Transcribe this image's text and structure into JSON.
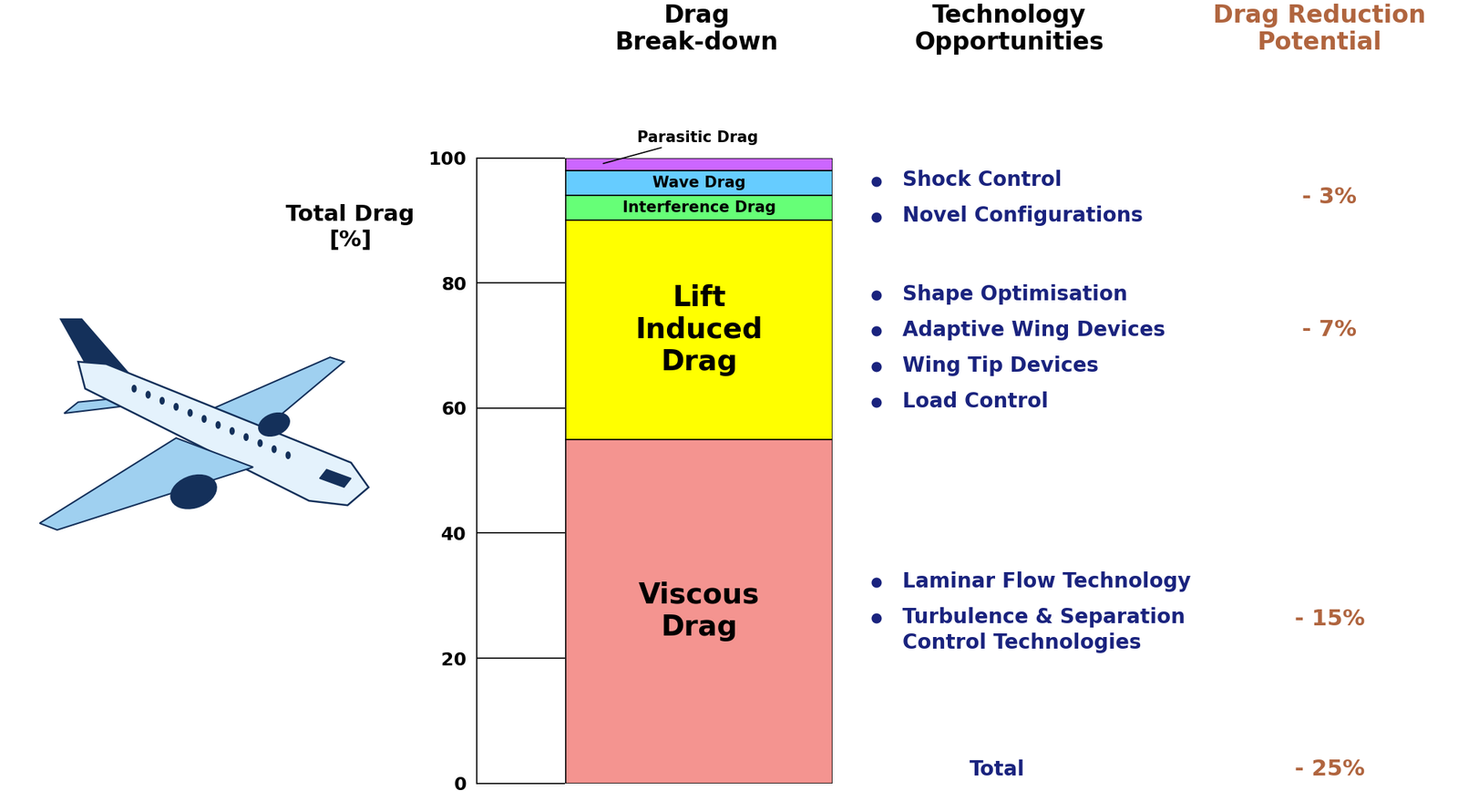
{
  "chart_data": {
    "type": "bar",
    "stacked": true,
    "tick_labels": "y",
    "ylabel": "Total Drag\n[%]",
    "categories": [
      null
    ],
    "ylim": [
      0,
      100
    ],
    "yticks": [
      0,
      20,
      40,
      60,
      80,
      100
    ],
    "series": [
      {
        "name": "Viscous\nDrag",
        "color": "#f49490",
        "values": [
          55
        ]
      },
      {
        "name": "Lift\nInduced\nDrag",
        "color": "#ffff00",
        "values": [
          35
        ]
      },
      {
        "name": "Interference Drag",
        "color": "#66ff77",
        "values": [
          4
        ]
      },
      {
        "name": "Wave Drag",
        "color": "#66ccff",
        "values": [
          4
        ]
      },
      {
        "name": "Parasitic Drag",
        "color": "#cc66ff",
        "values": [
          2
        ]
      }
    ],
    "column_headers": [
      "Drag\nBreak-down",
      "Technology\nOpportunities",
      "Drag Reduction\nPotential"
    ],
    "technology_groups": [
      {
        "items": [
          "Shock Control",
          "Novel Configurations"
        ],
        "reduction": "- 3%"
      },
      {
        "items": [
          "Shape Optimisation",
          "Adaptive Wing Devices",
          "Wing Tip Devices",
          "Load Control"
        ],
        "reduction": "- 7%"
      },
      {
        "items": [
          "Laminar Flow Technology",
          "Turbulence & Separation\nControl Technologies"
        ],
        "reduction": "- 15%"
      }
    ],
    "total": {
      "label": "Total",
      "reduction": "- 25%"
    }
  }
}
